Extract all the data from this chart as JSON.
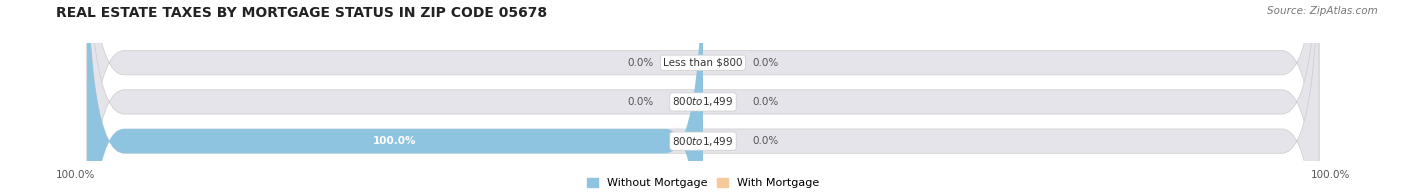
{
  "title": "REAL ESTATE TAXES BY MORTGAGE STATUS IN ZIP CODE 05678",
  "source": "Source: ZipAtlas.com",
  "rows": [
    {
      "label": "Less than $800",
      "without_mortgage": 0.0,
      "with_mortgage": 0.0
    },
    {
      "label": "$800 to $1,499",
      "without_mortgage": 0.0,
      "with_mortgage": 0.0
    },
    {
      "label": "$800 to $1,499",
      "without_mortgage": 100.0,
      "with_mortgage": 0.0
    }
  ],
  "color_without": "#8EC4E0",
  "color_with": "#F5C99A",
  "color_bar_bg": "#E4E4EA",
  "color_bar_bg_light": "#EBEBF0",
  "axis_left_label": "100.0%",
  "axis_right_label": "100.0%",
  "legend_without": "Without Mortgage",
  "legend_with": "With Mortgage",
  "title_fontsize": 10,
  "source_fontsize": 7.5,
  "bar_height": 0.62,
  "fig_width": 14.06,
  "fig_height": 1.96,
  "dpi": 100
}
